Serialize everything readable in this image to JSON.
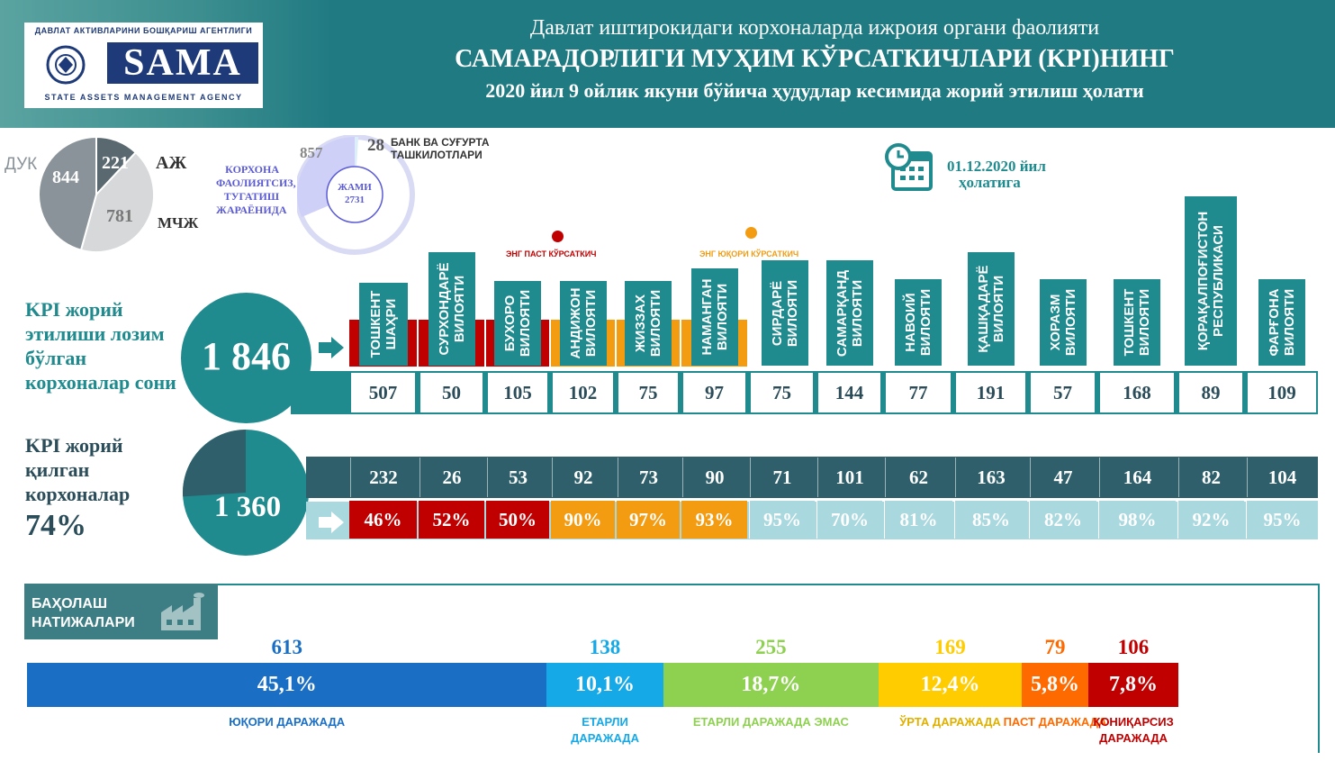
{
  "header": {
    "logo_top": "ДАВЛАТ АКТИВЛАРИНИ БОШҚАРИШ АГЕНТЛИГИ",
    "logo_word": "SAMA",
    "logo_sub": "STATE ASSETS MANAGEMENT AGENCY",
    "title_line1": "Давлат иштирокидаги корхоналарда ижроия органи фаолияти",
    "title_line2": "САМАРАДОРЛИГИ МУҲИМ КЎРСАТКИЧЛАРИ (KPI)НИНГ",
    "title_line3": "2020 йил 9 ойлик якуни бўйича ҳудудлар кесимида жорий этилиш ҳолати"
  },
  "date_block": {
    "line1": "01.12.2020 йил",
    "line2": "ҳолатига"
  },
  "legend_markers": {
    "lowest": "ЭНГ ПАСТ КЎРСАТКИЧ",
    "highest": "ЭНГ ЮҚОРИ КЎРСАТКИЧ",
    "lowest_color": "#c00000",
    "highest_color": "#f39c12"
  },
  "chart_data": [
    {
      "type": "pie",
      "categories": [
        "ДУК",
        "АЖ",
        "МЧЖ"
      ],
      "values": [
        844,
        221,
        781
      ],
      "colors": [
        "#8a9399",
        "#5a6870",
        "#d6d8d9"
      ]
    },
    {
      "type": "pie",
      "center_label": "ЖАМИ",
      "center_value": "2731",
      "categories": [
        "БАНК ВА СУҒУРТА ТАШКИЛОТЛАРИ",
        "КОРХОНА ФАОЛИЯТСИЗ, ТУГАТИШ ЖАРАЁНИДА"
      ],
      "values": [
        28,
        857
      ],
      "colors": [
        "#ddeefb",
        "#cfd0f7"
      ]
    },
    {
      "type": "table",
      "totals": {
        "required_label": "KPI жорий этилиши лозим бўлган корхоналар сони",
        "required_total": "1 846",
        "done_label": "KPI жорий қилган корхоналар",
        "done_percent": "74%",
        "done_total": "1 360",
        "done_fraction": 0.74
      },
      "categories": [
        "ТОШКЕНТ ШАҲРИ",
        "СУРХОНДАРЁ ВИЛОЯТИ",
        "БУХОРО ВИЛОЯТИ",
        "АНДИЖОН ВИЛОЯТИ",
        "ЖИЗЗАХ ВИЛОЯТИ",
        "НАМАНГАН ВИЛОЯТИ",
        "СИРДАРЁ ВИЛОЯТИ",
        "САМАРҚАНД ВИЛОЯТИ",
        "НАВОИЙ ВИЛОЯТИ",
        "ҚАШҚАДАРЁ ВИЛОЯТИ",
        "ХОРАЗМ ВИЛОЯТИ",
        "ТОШКЕНТ ВИЛОЯТИ",
        "ҚОРАҚАЛПОҒИСТОН РЕСПУБЛИКАСИ",
        "ФАРҒОНА ВИЛОЯТИ"
      ],
      "series": [
        {
          "name": "required",
          "values": [
            "507",
            "50",
            "105",
            "102",
            "75",
            "97",
            "75",
            "144",
            "77",
            "191",
            "57",
            "168",
            "89",
            "109"
          ]
        },
        {
          "name": "implemented",
          "values": [
            "232",
            "26",
            "53",
            "92",
            "73",
            "90",
            "71",
            "101",
            "62",
            "163",
            "47",
            "164",
            "82",
            "104"
          ]
        },
        {
          "name": "percent",
          "values": [
            "46%",
            "52%",
            "50%",
            "90%",
            "97%",
            "93%",
            "95%",
            "70%",
            "81%",
            "85%",
            "82%",
            "98%",
            "92%",
            "95%"
          ]
        }
      ],
      "group_colors": [
        "#c00000",
        "#c00000",
        "#c00000",
        "#f39c12",
        "#f39c12",
        "#f39c12",
        "#a9d8df",
        "#a9d8df",
        "#a9d8df",
        "#a9d8df",
        "#a9d8df",
        "#a9d8df",
        "#a9d8df",
        "#a9d8df"
      ]
    },
    {
      "type": "bar",
      "title": "БАҲОЛАШ НАТИЖАЛАРИ",
      "categories": [
        "ЮҚОРИ ДАРАЖАДА",
        "ЕТАРЛИ ДАРАЖАДА",
        "ЕТАРЛИ ДАРАЖАДА ЭМАС",
        "ЎРТА ДАРАЖАДА",
        "ПАСТ ДАРАЖАДА",
        "ҚОНИҚАРСИЗ ДАРАЖАДА"
      ],
      "counts": [
        "613",
        "138",
        "255",
        "169",
        "79",
        "106"
      ],
      "percents": [
        "45,1%",
        "10,1%",
        "18,7%",
        "12,4%",
        "5,8%",
        "7,8%"
      ],
      "colors": [
        "#1a6fc4",
        "#16a9e8",
        "#8ed150",
        "#ffcc00",
        "#ff6a00",
        "#c00000"
      ],
      "count_colors": [
        "#1a6fc4",
        "#16a9e8",
        "#8ed150",
        "#ffcc00",
        "#ff6a00",
        "#c00000"
      ]
    }
  ]
}
